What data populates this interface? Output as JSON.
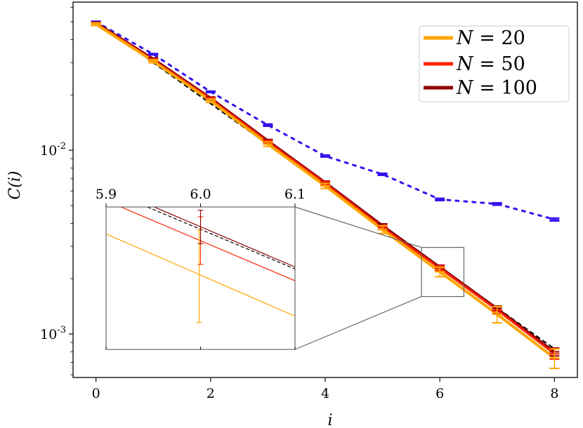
{
  "chart_data": {
    "type": "line",
    "xlabel": "i",
    "ylabel": "C(i)",
    "yscale": "log",
    "xlim": [
      -0.4,
      8.4
    ],
    "ylim": [
      0.00058,
      0.064
    ],
    "x_ticks": [
      0,
      2,
      4,
      6,
      8
    ],
    "x_tick_labels": [
      "0",
      "2",
      "4",
      "6",
      "8"
    ],
    "y_major_ticks": [
      0.01,
      0.001
    ],
    "y_tick_labels": [
      {
        "base": "10",
        "exp": "-2"
      },
      {
        "base": "10",
        "exp": "-3"
      }
    ],
    "legend": {
      "placement": "top-right",
      "entries": [
        {
          "label_var": "N",
          "label_rest": " = 20",
          "color": "#ffa500"
        },
        {
          "label_var": "N",
          "label_rest": " = 50",
          "color": "#ff2200"
        },
        {
          "label_var": "N",
          "label_rest": " = 100",
          "color": "#8b0000"
        }
      ]
    },
    "series": [
      {
        "name": "N = 20",
        "color": "#ffa500",
        "x": [
          0,
          1,
          2,
          3,
          4,
          5,
          6,
          7,
          8
        ],
        "y": [
          0.0485,
          0.0305,
          0.0186,
          0.0108,
          0.0064,
          0.0037,
          0.00218,
          0.00128,
          0.00074
        ],
        "err": [
          0.0008,
          0.0006,
          0.0004,
          0.0003,
          0.0002,
          0.00018,
          0.00013,
          0.00013,
          9e-05
        ]
      },
      {
        "name": "N = 50",
        "color": "#ff2200",
        "x": [
          0,
          1,
          2,
          3,
          4,
          5,
          6,
          7,
          8
        ],
        "y": [
          0.049,
          0.031,
          0.019,
          0.0111,
          0.0066,
          0.0038,
          0.00228,
          0.00135,
          0.00078
        ],
        "err": [
          0.0005,
          0.0004,
          0.0003,
          0.0002,
          0.00015,
          0.0001,
          7e-05,
          6e-05,
          5e-05
        ]
      },
      {
        "name": "N = 100",
        "color": "#8b0000",
        "x": [
          0,
          1,
          2,
          3,
          4,
          5,
          6,
          7,
          8
        ],
        "y": [
          0.0495,
          0.0315,
          0.0193,
          0.0113,
          0.0067,
          0.0039,
          0.00232,
          0.00138,
          0.0008
        ],
        "err": [
          0.0003,
          0.0003,
          0.0002,
          0.00015,
          0.0001,
          8e-05,
          5e-05,
          4e-05,
          4e-05
        ]
      },
      {
        "color": "#000000",
        "style": "dashed",
        "x": [
          0,
          8
        ],
        "y": [
          0.05,
          0.00083
        ]
      },
      {
        "color": "#3311ee",
        "style": "dotted",
        "x": [
          0,
          1,
          2,
          3,
          4,
          5,
          6,
          7,
          8
        ],
        "y": [
          0.05,
          0.0333,
          0.0208,
          0.0137,
          0.0093,
          0.0074,
          0.0054,
          0.0051,
          0.0042
        ],
        "err": [
          0.0004,
          0.0003,
          0.0002,
          0.0002,
          0.00012,
          0.0001,
          8e-05,
          8e-05,
          8e-05
        ]
      }
    ],
    "inset": {
      "xlim": [
        5.9,
        6.1
      ],
      "x_ticks": [
        5.9,
        6.0,
        6.1
      ],
      "x_tick_labels": [
        "5.9",
        "6.0",
        "6.1"
      ],
      "zoom_box_xlim": [
        5.68,
        6.42
      ],
      "zoom_box_ylim": [
        0.0016,
        0.00296
      ]
    }
  }
}
